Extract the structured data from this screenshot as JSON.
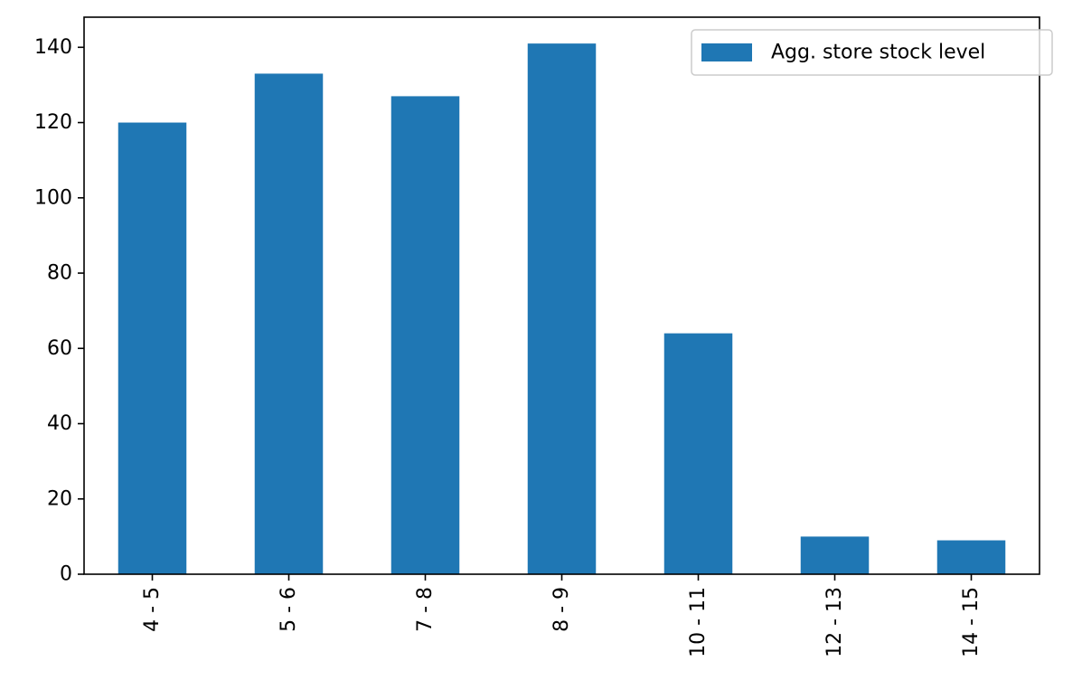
{
  "chart_data": {
    "type": "bar",
    "categories": [
      "4 - 5",
      "5 - 6",
      "7 - 8",
      "8 - 9",
      "10 - 11",
      "12 - 13",
      "14 - 15"
    ],
    "series": [
      {
        "name": "Agg. store stock level",
        "values": [
          120,
          133,
          127,
          141,
          64,
          10,
          9
        ],
        "color": "#1f77b4"
      }
    ],
    "ylim": [
      0,
      148
    ],
    "yticks": [
      0,
      20,
      40,
      60,
      80,
      100,
      120,
      140
    ],
    "xlabel": "",
    "ylabel": "",
    "title": "",
    "grid": false,
    "legend": {
      "placement": "top-right"
    },
    "x_tick_rotation": "vertical"
  }
}
